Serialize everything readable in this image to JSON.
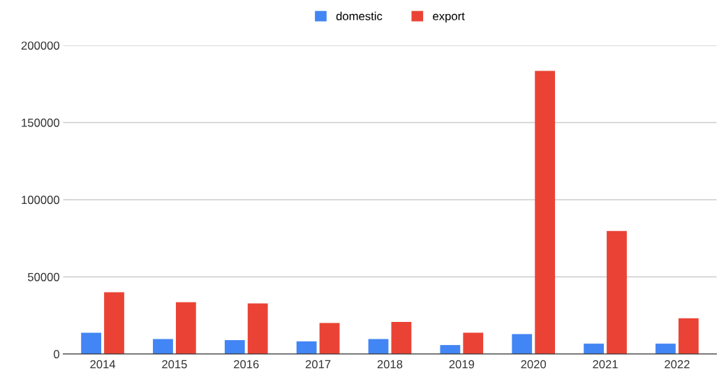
{
  "chart_data": {
    "type": "bar",
    "categories": [
      "2014",
      "2015",
      "2016",
      "2017",
      "2018",
      "2019",
      "2020",
      "2021",
      "2022"
    ],
    "series": [
      {
        "name": "domestic",
        "color": "#4285f4",
        "values": [
          13800,
          9700,
          9000,
          8200,
          9700,
          5800,
          12900,
          6700,
          6700
        ]
      },
      {
        "name": "export",
        "color": "#ea4335",
        "values": [
          40000,
          33600,
          32800,
          20100,
          20800,
          13800,
          183500,
          79700,
          23200
        ]
      }
    ],
    "ylim": [
      0,
      200000
    ],
    "yticks": [
      0,
      50000,
      100000,
      150000,
      200000
    ],
    "grid": "y",
    "legend": "top"
  }
}
